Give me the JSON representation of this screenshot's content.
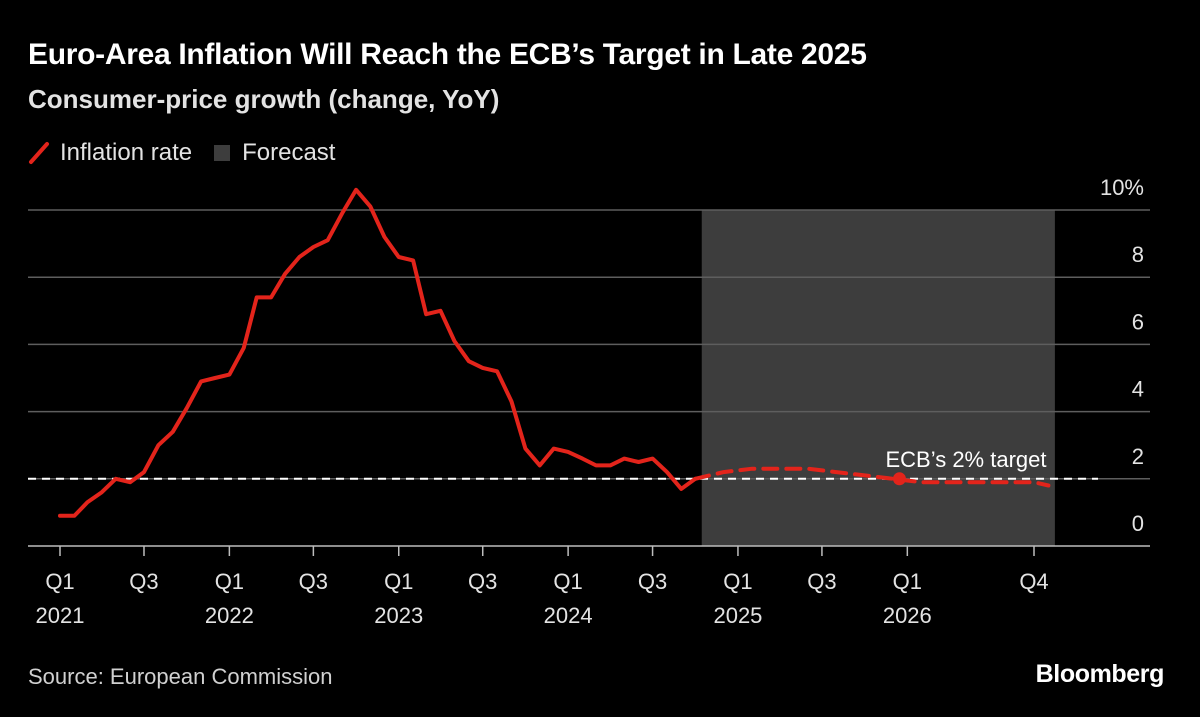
{
  "header": {
    "title": "Euro-Area Inflation Will Reach the ECB’s Target in Late 2025",
    "subtitle": "Consumer-price growth (change, YoY)"
  },
  "legend": {
    "items": [
      {
        "label": "Inflation rate",
        "icon": "red-line-swatch",
        "color": "#e3241b"
      },
      {
        "label": "Forecast",
        "icon": "gray-box-swatch",
        "color": "#3d3d3d"
      }
    ]
  },
  "footer": {
    "source": "Source: European Commission",
    "brand": "Bloomberg"
  },
  "colors": {
    "background": "#000000",
    "series": "#e3241b",
    "forecast_band": "#3d3d3d",
    "gridline": "#5e5e5e",
    "target_line": "#ffffff",
    "text": "#e3e3e3"
  },
  "chart_data": {
    "type": "line",
    "title": "Euro-Area Inflation Will Reach the ECB’s Target in Late 2025",
    "subtitle": "Consumer-price growth (change, YoY)",
    "ylim": [
      0,
      10
    ],
    "y_ticks": [
      0,
      2,
      4,
      6,
      8,
      10
    ],
    "y_tick_labels": [
      "0",
      "2",
      "4",
      "6",
      "8",
      "10%"
    ],
    "y_axis_position": "right",
    "grid": true,
    "legend_position": "top-left",
    "x_ticks": [
      {
        "x": "2021-01-01",
        "label": "Q1",
        "year": "2021"
      },
      {
        "x": "2021-07-01",
        "label": "Q3",
        "year": ""
      },
      {
        "x": "2022-01-01",
        "label": "Q1",
        "year": "2022"
      },
      {
        "x": "2022-07-01",
        "label": "Q3",
        "year": ""
      },
      {
        "x": "2023-01-01",
        "label": "Q1",
        "year": "2023"
      },
      {
        "x": "2023-07-01",
        "label": "Q3",
        "year": ""
      },
      {
        "x": "2024-01-01",
        "label": "Q1",
        "year": "2024"
      },
      {
        "x": "2024-07-01",
        "label": "Q3",
        "year": ""
      },
      {
        "x": "2025-01-01",
        "label": "Q1",
        "year": "2025"
      },
      {
        "x": "2025-07-01",
        "label": "Q3",
        "year": ""
      },
      {
        "x": "2026-01-01",
        "label": "Q1",
        "year": "2026"
      },
      {
        "x": "2026-10-01",
        "label": "Q4",
        "year": ""
      }
    ],
    "forecast_band": {
      "start": "2024-10-15",
      "end": "2026-11-15"
    },
    "reference_line": {
      "value": 2,
      "label": "ECB’s 2% target",
      "marker_date": "2025-12-15"
    },
    "series": [
      {
        "name": "Inflation rate",
        "style": "solid",
        "points": [
          [
            "2021-01-01",
            0.9
          ],
          [
            "2021-02-01",
            0.9
          ],
          [
            "2021-03-01",
            1.3
          ],
          [
            "2021-04-01",
            1.6
          ],
          [
            "2021-05-01",
            2.0
          ],
          [
            "2021-06-01",
            1.9
          ],
          [
            "2021-07-01",
            2.2
          ],
          [
            "2021-08-01",
            3.0
          ],
          [
            "2021-09-01",
            3.4
          ],
          [
            "2021-10-01",
            4.1
          ],
          [
            "2021-11-01",
            4.9
          ],
          [
            "2021-12-01",
            5.0
          ],
          [
            "2022-01-01",
            5.1
          ],
          [
            "2022-02-01",
            5.9
          ],
          [
            "2022-03-01",
            7.4
          ],
          [
            "2022-04-01",
            7.4
          ],
          [
            "2022-05-01",
            8.1
          ],
          [
            "2022-06-01",
            8.6
          ],
          [
            "2022-07-01",
            8.9
          ],
          [
            "2022-08-01",
            9.1
          ],
          [
            "2022-09-01",
            9.9
          ],
          [
            "2022-10-01",
            10.6
          ],
          [
            "2022-11-01",
            10.1
          ],
          [
            "2022-12-01",
            9.2
          ],
          [
            "2023-01-01",
            8.6
          ],
          [
            "2023-02-01",
            8.5
          ],
          [
            "2023-03-01",
            6.9
          ],
          [
            "2023-04-01",
            7.0
          ],
          [
            "2023-05-01",
            6.1
          ],
          [
            "2023-06-01",
            5.5
          ],
          [
            "2023-07-01",
            5.3
          ],
          [
            "2023-08-01",
            5.2
          ],
          [
            "2023-09-01",
            4.3
          ],
          [
            "2023-10-01",
            2.9
          ],
          [
            "2023-11-01",
            2.4
          ],
          [
            "2023-12-01",
            2.9
          ],
          [
            "2024-01-01",
            2.8
          ],
          [
            "2024-02-01",
            2.6
          ],
          [
            "2024-03-01",
            2.4
          ],
          [
            "2024-04-01",
            2.4
          ],
          [
            "2024-05-01",
            2.6
          ],
          [
            "2024-06-01",
            2.5
          ],
          [
            "2024-07-01",
            2.6
          ],
          [
            "2024-08-01",
            2.2
          ],
          [
            "2024-09-01",
            1.7
          ],
          [
            "2024-10-01",
            2.0
          ]
        ]
      },
      {
        "name": "Forecast",
        "style": "dashed",
        "points": [
          [
            "2024-10-01",
            2.0
          ],
          [
            "2024-12-01",
            2.2
          ],
          [
            "2025-02-01",
            2.3
          ],
          [
            "2025-04-01",
            2.3
          ],
          [
            "2025-06-01",
            2.3
          ],
          [
            "2025-08-01",
            2.2
          ],
          [
            "2025-10-01",
            2.1
          ],
          [
            "2025-12-01",
            2.0
          ],
          [
            "2026-02-01",
            1.9
          ],
          [
            "2026-04-01",
            1.9
          ],
          [
            "2026-06-01",
            1.9
          ],
          [
            "2026-08-01",
            1.9
          ],
          [
            "2026-10-01",
            1.9
          ],
          [
            "2026-11-01",
            1.8
          ]
        ]
      }
    ]
  }
}
